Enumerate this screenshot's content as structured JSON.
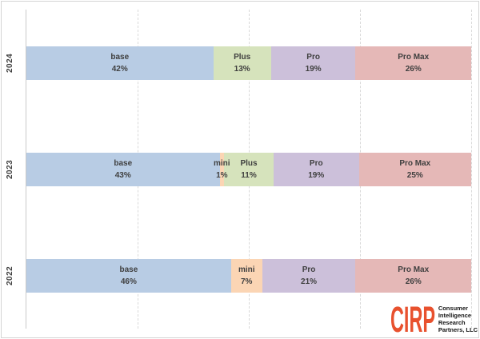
{
  "chart_data": {
    "type": "bar",
    "orientation": "horizontal",
    "stacked": true,
    "title": "",
    "xlabel": "",
    "ylabel": "",
    "categories": [
      "2024",
      "2023",
      "2022"
    ],
    "series": [
      {
        "name": "base",
        "values": [
          42,
          43,
          46
        ]
      },
      {
        "name": "mini",
        "values": [
          null,
          1,
          7
        ]
      },
      {
        "name": "Plus",
        "values": [
          13,
          11,
          null
        ]
      },
      {
        "name": "Pro",
        "values": [
          19,
          19,
          21
        ]
      },
      {
        "name": "Pro Max",
        "values": [
          26,
          25,
          26
        ]
      }
    ],
    "value_format": "percent",
    "xlim": [
      0,
      100
    ],
    "gridlines": {
      "style": "dashed-vertical",
      "positions_pct": [
        25,
        50,
        75,
        100
      ]
    },
    "legend_position": "none (labels inside segments)"
  },
  "styles": {
    "segment_colors": {
      "base": "#B8CCE4",
      "mini": "#FBD5B4",
      "Plus": "#D6E3BC",
      "Pro": "#CCC0DA",
      "Pro Max": "#E5B8B7"
    },
    "label_color": "#3F3F3F",
    "gridline_color": "#D9D9D9",
    "axis_line_color": "#C9C9C9",
    "logo_color": "#E8512E"
  },
  "rows": [
    {
      "year": "2024",
      "segments": [
        {
          "name": "base",
          "pct": 42,
          "pct_label": "42%"
        },
        {
          "name": "Plus",
          "pct": 13,
          "pct_label": "13%"
        },
        {
          "name": "Pro",
          "pct": 19,
          "pct_label": "19%"
        },
        {
          "name": "Pro Max",
          "pct": 26,
          "pct_label": "26%"
        }
      ]
    },
    {
      "year": "2023",
      "segments": [
        {
          "name": "base",
          "pct": 43,
          "pct_label": "43%"
        },
        {
          "name": "mini",
          "pct": 1,
          "pct_label": "1%"
        },
        {
          "name": "Plus",
          "pct": 11,
          "pct_label": "11%"
        },
        {
          "name": "Pro",
          "pct": 19,
          "pct_label": "19%"
        },
        {
          "name": "Pro Max",
          "pct": 25,
          "pct_label": "25%"
        }
      ]
    },
    {
      "year": "2022",
      "segments": [
        {
          "name": "base",
          "pct": 46,
          "pct_label": "46%"
        },
        {
          "name": "mini",
          "pct": 7,
          "pct_label": "7%"
        },
        {
          "name": "Pro",
          "pct": 21,
          "pct_label": "21%"
        },
        {
          "name": "Pro Max",
          "pct": 26,
          "pct_label": "26%"
        }
      ]
    }
  ],
  "logo": {
    "wordmark": "CIRP",
    "lines": [
      "Consumer",
      "Intelligence",
      "Research",
      "Partners, LLC"
    ]
  }
}
